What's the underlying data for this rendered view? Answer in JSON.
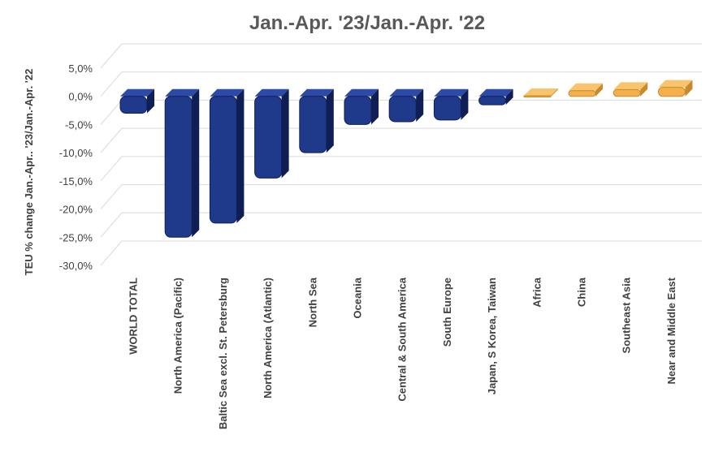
{
  "chart_data": {
    "type": "bar",
    "title": "Jan.-Apr. '23/Jan.-Apr. '22",
    "ylabel": "TEU % change Jan.-Apr.. '23/Jan.-Apr. '22",
    "xlabel": "",
    "ylim": [
      -30,
      5
    ],
    "yticks": [
      5,
      0,
      -5,
      -10,
      -15,
      -20,
      -25,
      -30
    ],
    "ytick_labels": [
      "5,0%",
      "0,0%",
      "-5,0%",
      "-10,0%",
      "-15,0%",
      "-20,0%",
      "-25,0%",
      "-30,0%"
    ],
    "grid": true,
    "categories": [
      "WORLD TOTAL",
      "North America (Pacific)",
      "Baltic Sea excl. St. Petersburg",
      "North America (Atlantic)",
      "North Sea",
      "Oceania",
      "Central & South America",
      "South Europe",
      "Japan, S Korea, Taiwan",
      "Africa",
      "China",
      "Southeast Asia",
      "Near and Middle East"
    ],
    "values": [
      -3.0,
      -25.0,
      -22.5,
      -14.5,
      -10.0,
      -5.0,
      -4.5,
      -4.2,
      -1.5,
      0.1,
      1.0,
      1.2,
      1.6
    ],
    "colors": {
      "negative": "#1f3a8a",
      "positive": "#f5b04c",
      "grid": "#d9d9d9"
    }
  }
}
